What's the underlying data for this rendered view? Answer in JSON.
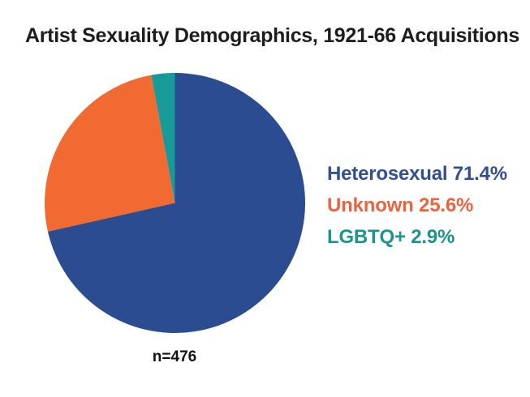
{
  "title": "Artist Sexuality Demographics, 1921-66 Acquisitions",
  "sample_label": "n=476",
  "chart_data": {
    "type": "pie",
    "title": "Artist Sexuality Demographics, 1921-66 Acquisitions",
    "n": 476,
    "unit": "%",
    "start_angle_deg": 0,
    "direction": "clockwise",
    "legend_position": "right",
    "slices": [
      {
        "label": "Heterosexual",
        "value": 71.4,
        "color": "#2b4c91",
        "legend_color": "#31508d"
      },
      {
        "label": "Unknown",
        "value": 25.6,
        "color": "#f16a31",
        "legend_color": "#e8653f"
      },
      {
        "label": "LGBTQ+",
        "value": 2.9,
        "color": "#189a99",
        "legend_color": "#1b938e"
      }
    ]
  },
  "colors": {
    "background": "#ffffff",
    "title_text": "#1d1d1d",
    "sample_text": "#111111"
  }
}
